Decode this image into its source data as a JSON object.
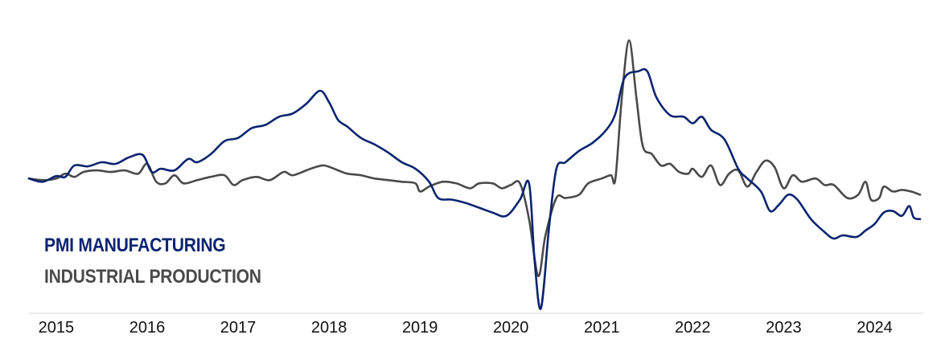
{
  "chart_data": {
    "type": "line",
    "xlabel": "",
    "ylabel": "",
    "xlim": [
      2014.7,
      2024.5
    ],
    "ylim": [
      -8,
      10
    ],
    "x_tick_labels": [
      "2015",
      "2016",
      "2017",
      "2018",
      "2019",
      "2020",
      "2021",
      "2022",
      "2023",
      "2024"
    ],
    "x_ticks": [
      2015,
      2016,
      2017,
      2018,
      2019,
      2020,
      2021,
      2022,
      2023,
      2024
    ],
    "grid": false,
    "legend_position": "lower-left",
    "series": [
      {
        "name": "PMI MANUFACTURING",
        "color": "#0a2470",
        "points": [
          [
            2014.7,
            0.0
          ],
          [
            2014.85,
            -0.2
          ],
          [
            2015.0,
            0.15
          ],
          [
            2015.1,
            0.1
          ],
          [
            2015.2,
            0.8
          ],
          [
            2015.35,
            0.75
          ],
          [
            2015.5,
            1.0
          ],
          [
            2015.65,
            0.9
          ],
          [
            2015.8,
            1.3
          ],
          [
            2015.95,
            1.45
          ],
          [
            2016.05,
            0.4
          ],
          [
            2016.15,
            0.6
          ],
          [
            2016.3,
            0.5
          ],
          [
            2016.45,
            1.2
          ],
          [
            2016.55,
            1.0
          ],
          [
            2016.7,
            1.5
          ],
          [
            2016.85,
            2.3
          ],
          [
            2017.0,
            2.5
          ],
          [
            2017.15,
            3.1
          ],
          [
            2017.3,
            3.3
          ],
          [
            2017.45,
            3.8
          ],
          [
            2017.6,
            4.0
          ],
          [
            2017.75,
            4.6
          ],
          [
            2017.9,
            5.4
          ],
          [
            2018.0,
            4.7
          ],
          [
            2018.1,
            3.6
          ],
          [
            2018.2,
            3.2
          ],
          [
            2018.35,
            2.5
          ],
          [
            2018.5,
            2.1
          ],
          [
            2018.65,
            1.6
          ],
          [
            2018.8,
            1.0
          ],
          [
            2018.95,
            0.6
          ],
          [
            2019.1,
            -0.2
          ],
          [
            2019.2,
            -1.2
          ],
          [
            2019.35,
            -1.3
          ],
          [
            2019.5,
            -1.5
          ],
          [
            2019.65,
            -1.8
          ],
          [
            2019.8,
            -2.1
          ],
          [
            2019.95,
            -2.3
          ],
          [
            2020.1,
            -1.3
          ],
          [
            2020.2,
            -0.3
          ],
          [
            2020.26,
            -5.0
          ],
          [
            2020.33,
            -8.0
          ],
          [
            2020.42,
            -3.0
          ],
          [
            2020.5,
            0.6
          ],
          [
            2020.6,
            1.0
          ],
          [
            2020.75,
            1.7
          ],
          [
            2020.9,
            2.2
          ],
          [
            2021.05,
            3.0
          ],
          [
            2021.15,
            4.0
          ],
          [
            2021.25,
            6.2
          ],
          [
            2021.4,
            6.6
          ],
          [
            2021.5,
            6.6
          ],
          [
            2021.6,
            5.0
          ],
          [
            2021.75,
            3.9
          ],
          [
            2021.9,
            3.8
          ],
          [
            2022.0,
            3.4
          ],
          [
            2022.1,
            3.8
          ],
          [
            2022.2,
            3.0
          ],
          [
            2022.35,
            2.4
          ],
          [
            2022.5,
            0.6
          ],
          [
            2022.6,
            0.0
          ],
          [
            2022.75,
            -0.8
          ],
          [
            2022.85,
            -2.0
          ],
          [
            2022.95,
            -1.6
          ],
          [
            2023.05,
            -1.0
          ],
          [
            2023.15,
            -1.3
          ],
          [
            2023.3,
            -2.5
          ],
          [
            2023.45,
            -3.3
          ],
          [
            2023.55,
            -3.7
          ],
          [
            2023.65,
            -3.5
          ],
          [
            2023.8,
            -3.6
          ],
          [
            2023.9,
            -3.2
          ],
          [
            2024.0,
            -2.8
          ],
          [
            2024.1,
            -2.1
          ],
          [
            2024.2,
            -2.0
          ],
          [
            2024.3,
            -2.3
          ],
          [
            2024.38,
            -1.7
          ],
          [
            2024.43,
            -2.4
          ],
          [
            2024.5,
            -2.5
          ]
        ]
      },
      {
        "name": "INDUSTRIAL PRODUCTION",
        "color": "#4a4a4a",
        "points": [
          [
            2014.7,
            0.0
          ],
          [
            2014.85,
            -0.1
          ],
          [
            2015.0,
            0.0
          ],
          [
            2015.1,
            0.3
          ],
          [
            2015.2,
            0.1
          ],
          [
            2015.3,
            0.4
          ],
          [
            2015.45,
            0.5
          ],
          [
            2015.6,
            0.4
          ],
          [
            2015.75,
            0.5
          ],
          [
            2015.9,
            0.3
          ],
          [
            2016.0,
            0.9
          ],
          [
            2016.1,
            -0.2
          ],
          [
            2016.2,
            -0.3
          ],
          [
            2016.3,
            0.2
          ],
          [
            2016.4,
            -0.3
          ],
          [
            2016.55,
            -0.1
          ],
          [
            2016.7,
            0.1
          ],
          [
            2016.85,
            0.2
          ],
          [
            2016.95,
            -0.4
          ],
          [
            2017.05,
            -0.1
          ],
          [
            2017.2,
            0.1
          ],
          [
            2017.35,
            -0.1
          ],
          [
            2017.5,
            0.4
          ],
          [
            2017.6,
            0.2
          ],
          [
            2017.75,
            0.5
          ],
          [
            2017.85,
            0.7
          ],
          [
            2017.95,
            0.8
          ],
          [
            2018.1,
            0.5
          ],
          [
            2018.2,
            0.3
          ],
          [
            2018.35,
            0.2
          ],
          [
            2018.5,
            0.0
          ],
          [
            2018.65,
            -0.1
          ],
          [
            2018.8,
            -0.2
          ],
          [
            2018.95,
            -0.3
          ],
          [
            2019.0,
            -0.8
          ],
          [
            2019.1,
            -0.5
          ],
          [
            2019.25,
            -0.2
          ],
          [
            2019.4,
            -0.3
          ],
          [
            2019.55,
            -0.6
          ],
          [
            2019.65,
            -0.3
          ],
          [
            2019.8,
            -0.3
          ],
          [
            2019.9,
            -0.6
          ],
          [
            2020.0,
            -0.4
          ],
          [
            2020.1,
            -0.3
          ],
          [
            2020.2,
            -2.5
          ],
          [
            2020.3,
            -6.0
          ],
          [
            2020.38,
            -3.5
          ],
          [
            2020.5,
            -1.2
          ],
          [
            2020.6,
            -1.2
          ],
          [
            2020.75,
            -1.0
          ],
          [
            2020.85,
            -0.3
          ],
          [
            2021.0,
            0.0
          ],
          [
            2021.1,
            0.2
          ],
          [
            2021.15,
            0.0
          ],
          [
            2021.22,
            5.0
          ],
          [
            2021.3,
            8.5
          ],
          [
            2021.38,
            5.0
          ],
          [
            2021.45,
            2.0
          ],
          [
            2021.55,
            1.5
          ],
          [
            2021.65,
            0.8
          ],
          [
            2021.75,
            0.9
          ],
          [
            2021.85,
            0.4
          ],
          [
            2021.95,
            0.3
          ],
          [
            2022.0,
            0.6
          ],
          [
            2022.1,
            0.1
          ],
          [
            2022.2,
            0.8
          ],
          [
            2022.3,
            -0.4
          ],
          [
            2022.4,
            0.3
          ],
          [
            2022.5,
            0.5
          ],
          [
            2022.6,
            -0.5
          ],
          [
            2022.7,
            0.4
          ],
          [
            2022.8,
            1.1
          ],
          [
            2022.9,
            0.7
          ],
          [
            2023.0,
            -0.6
          ],
          [
            2023.1,
            0.2
          ],
          [
            2023.2,
            -0.2
          ],
          [
            2023.35,
            0.0
          ],
          [
            2023.45,
            -0.4
          ],
          [
            2023.55,
            -0.4
          ],
          [
            2023.7,
            -1.2
          ],
          [
            2023.82,
            -1.0
          ],
          [
            2023.9,
            -0.2
          ],
          [
            2023.96,
            -1.3
          ],
          [
            2024.05,
            -1.2
          ],
          [
            2024.1,
            -0.5
          ],
          [
            2024.2,
            -0.8
          ],
          [
            2024.3,
            -0.7
          ],
          [
            2024.4,
            -0.8
          ],
          [
            2024.5,
            -1.0
          ]
        ]
      }
    ]
  }
}
